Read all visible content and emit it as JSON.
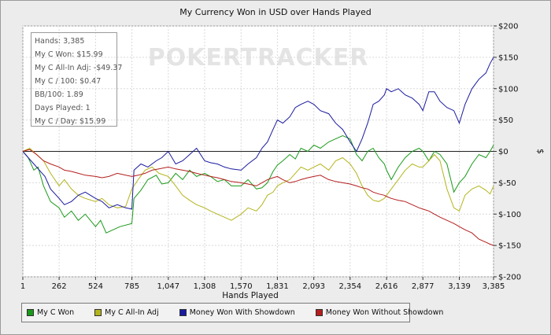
{
  "chart_data": {
    "type": "line",
    "title": "My Currency Won in USD over Hands Played",
    "xlabel": "Hands Played",
    "ylabel": "$",
    "xlim": [
      1,
      3385
    ],
    "ylim": [
      -200,
      200
    ],
    "x_ticks": [
      "1",
      "262",
      "524",
      "785",
      "1,047",
      "1,308",
      "1,570",
      "1,831",
      "2,093",
      "2,354",
      "2,616",
      "2,877",
      "3,139",
      "3,385"
    ],
    "x_tick_values": [
      1,
      262,
      524,
      785,
      1047,
      1308,
      1570,
      1831,
      2093,
      2354,
      2616,
      2877,
      3139,
      3385
    ],
    "y_ticks": [
      "$200",
      "$150",
      "$100",
      "$50",
      "$0",
      "$-50",
      "$-100",
      "$-150",
      "$-200"
    ],
    "y_tick_values": [
      200,
      150,
      100,
      50,
      0,
      -50,
      -100,
      -150,
      -200
    ],
    "grid": true,
    "legend_position": "bottom",
    "series": [
      {
        "name": "My C Won",
        "color": "#1a9a1a",
        "x": [
          1,
          40,
          80,
          110,
          150,
          200,
          262,
          300,
          350,
          400,
          450,
          524,
          560,
          600,
          650,
          700,
          785,
          800,
          850,
          900,
          960,
          1000,
          1047,
          1100,
          1150,
          1200,
          1250,
          1308,
          1350,
          1400,
          1450,
          1500,
          1570,
          1620,
          1680,
          1720,
          1760,
          1800,
          1831,
          1870,
          1920,
          1960,
          2000,
          2050,
          2093,
          2140,
          2200,
          2250,
          2300,
          2354,
          2400,
          2440,
          2480,
          2520,
          2560,
          2600,
          2616,
          2650,
          2700,
          2750,
          2800,
          2850,
          2877,
          2920,
          2960,
          3000,
          3050,
          3100,
          3139,
          3180,
          3230,
          3280,
          3330,
          3360,
          3385
        ],
        "values": [
          0,
          -10,
          -30,
          -25,
          -55,
          -80,
          -90,
          -105,
          -95,
          -110,
          -100,
          -120,
          -110,
          -130,
          -125,
          -120,
          -115,
          -75,
          -62,
          -45,
          -38,
          -52,
          -50,
          -35,
          -45,
          -30,
          -40,
          -35,
          -40,
          -48,
          -45,
          -55,
          -55,
          -45,
          -60,
          -58,
          -50,
          -32,
          -22,
          -15,
          -5,
          -12,
          5,
          0,
          10,
          5,
          15,
          20,
          25,
          20,
          -5,
          -15,
          0,
          5,
          -10,
          -20,
          -30,
          -45,
          -25,
          -10,
          0,
          5,
          0,
          -15,
          0,
          -5,
          -20,
          -65,
          -50,
          -40,
          -20,
          -5,
          -10,
          0,
          10
        ]
      },
      {
        "name": "My C All-In Adj",
        "color": "#b4b41e",
        "x": [
          1,
          50,
          100,
          150,
          200,
          262,
          300,
          350,
          400,
          450,
          524,
          570,
          620,
          680,
          740,
          785,
          830,
          880,
          930,
          980,
          1047,
          1100,
          1150,
          1200,
          1250,
          1308,
          1350,
          1400,
          1450,
          1500,
          1570,
          1620,
          1680,
          1720,
          1760,
          1800,
          1831,
          1870,
          1920,
          1960,
          2000,
          2050,
          2093,
          2140,
          2200,
          2250,
          2300,
          2354,
          2400,
          2440,
          2480,
          2520,
          2560,
          2600,
          2616,
          2650,
          2700,
          2750,
          2800,
          2850,
          2877,
          2920,
          2960,
          3000,
          3050,
          3100,
          3139,
          3180,
          3230,
          3280,
          3330,
          3360,
          3385
        ],
        "values": [
          0,
          5,
          -5,
          -15,
          -35,
          -55,
          -45,
          -60,
          -70,
          -75,
          -80,
          -75,
          -85,
          -90,
          -88,
          -60,
          -45,
          -30,
          -25,
          -35,
          -40,
          -55,
          -70,
          -78,
          -85,
          -90,
          -95,
          -100,
          -105,
          -110,
          -100,
          -90,
          -95,
          -85,
          -70,
          -65,
          -55,
          -50,
          -45,
          -35,
          -25,
          -30,
          -25,
          -20,
          -30,
          -15,
          -10,
          -20,
          -35,
          -55,
          -70,
          -78,
          -80,
          -75,
          -70,
          -60,
          -45,
          -30,
          -20,
          -25,
          -25,
          -15,
          -5,
          -15,
          -60,
          -90,
          -95,
          -70,
          -60,
          -55,
          -62,
          -68,
          -55
        ]
      },
      {
        "name": "Money Won With Showdown",
        "color": "#1a1aa0",
        "x": [
          1,
          40,
          80,
          120,
          160,
          200,
          262,
          300,
          350,
          400,
          450,
          524,
          570,
          620,
          680,
          740,
          785,
          800,
          850,
          900,
          960,
          1000,
          1047,
          1100,
          1150,
          1200,
          1250,
          1308,
          1350,
          1400,
          1450,
          1500,
          1570,
          1620,
          1680,
          1720,
          1760,
          1800,
          1831,
          1870,
          1920,
          1960,
          2000,
          2050,
          2093,
          2140,
          2200,
          2250,
          2300,
          2354,
          2400,
          2440,
          2480,
          2520,
          2560,
          2600,
          2616,
          2650,
          2700,
          2750,
          2800,
          2850,
          2877,
          2920,
          2960,
          3000,
          3050,
          3100,
          3139,
          3180,
          3230,
          3280,
          3330,
          3360,
          3385
        ],
        "values": [
          0,
          -10,
          -20,
          -30,
          -40,
          -60,
          -75,
          -85,
          -80,
          -70,
          -65,
          -75,
          -80,
          -90,
          -85,
          -90,
          -92,
          -30,
          -20,
          -25,
          -15,
          -10,
          0,
          -20,
          -15,
          -5,
          5,
          -15,
          -18,
          -20,
          -25,
          -28,
          -30,
          -20,
          -10,
          5,
          15,
          35,
          50,
          45,
          55,
          70,
          75,
          80,
          75,
          65,
          60,
          45,
          35,
          15,
          0,
          20,
          45,
          75,
          80,
          90,
          100,
          95,
          100,
          90,
          85,
          75,
          65,
          95,
          95,
          80,
          70,
          65,
          45,
          75,
          100,
          115,
          125,
          140,
          150
        ]
      },
      {
        "name": "Money Won Without Showdown",
        "color": "#b41e1e",
        "x": [
          1,
          50,
          100,
          150,
          200,
          262,
          300,
          350,
          400,
          450,
          524,
          570,
          620,
          680,
          740,
          785,
          830,
          880,
          930,
          980,
          1047,
          1100,
          1150,
          1200,
          1250,
          1308,
          1350,
          1400,
          1450,
          1500,
          1570,
          1620,
          1680,
          1720,
          1760,
          1800,
          1831,
          1870,
          1920,
          1960,
          2000,
          2050,
          2093,
          2140,
          2200,
          2250,
          2300,
          2354,
          2400,
          2440,
          2480,
          2520,
          2560,
          2600,
          2616,
          2650,
          2700,
          2750,
          2800,
          2850,
          2877,
          2920,
          2960,
          3000,
          3050,
          3100,
          3139,
          3180,
          3230,
          3280,
          3330,
          3360,
          3385
        ],
        "values": [
          0,
          3,
          -5,
          -15,
          -20,
          -25,
          -30,
          -32,
          -35,
          -38,
          -40,
          -42,
          -40,
          -35,
          -38,
          -40,
          -38,
          -35,
          -30,
          -28,
          -25,
          -28,
          -30,
          -32,
          -35,
          -38,
          -40,
          -42,
          -45,
          -48,
          -50,
          -52,
          -55,
          -50,
          -45,
          -42,
          -40,
          -45,
          -50,
          -48,
          -45,
          -42,
          -40,
          -38,
          -45,
          -48,
          -50,
          -52,
          -55,
          -58,
          -60,
          -65,
          -68,
          -70,
          -72,
          -75,
          -78,
          -80,
          -85,
          -90,
          -92,
          -95,
          -100,
          -105,
          -110,
          -115,
          -120,
          -125,
          -130,
          -140,
          -145,
          -148,
          -150
        ]
      }
    ]
  },
  "watermark": "POKERTRACKER",
  "info_box": {
    "lines": [
      "Hands: 3,385",
      "My C Won: $15.99",
      "My C All-In Adj: -$49.37",
      "My C / 100: $0.47",
      "BB/100: 1.89",
      "Days Played: 1",
      "My C / Day: $15.99"
    ]
  },
  "legend": [
    "My C Won",
    "My C All-In Adj",
    "Money Won With Showdown",
    "Money Won Without Showdown"
  ]
}
